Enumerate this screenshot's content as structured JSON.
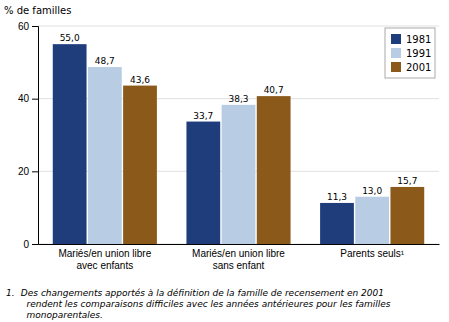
{
  "chart_data": {
    "type": "bar",
    "ylabel": "% de familles",
    "categories": [
      "Mariés/en union libre\navec enfants",
      "Mariés/en union libre\nsans enfant",
      "Parents seuls¹"
    ],
    "series": [
      {
        "name": "1981",
        "color": "#1f3d7a",
        "values": [
          55.0,
          33.7,
          11.3
        ],
        "value_labels": [
          "55,0",
          "33,7",
          "11,3"
        ]
      },
      {
        "name": "1991",
        "color": "#b8cce4",
        "values": [
          48.7,
          38.3,
          13.0
        ],
        "value_labels": [
          "48,7",
          "38,3",
          "13,0"
        ]
      },
      {
        "name": "2001",
        "color": "#8b5a1a",
        "values": [
          43.6,
          40.7,
          15.7
        ],
        "value_labels": [
          "43,6",
          "40,7",
          "15,7"
        ]
      }
    ],
    "ylim": [
      0,
      60
    ],
    "yticks": [
      0,
      20,
      40,
      60
    ],
    "grid": true,
    "legend": "upper right",
    "data_labels": true,
    "annotations": [
      "1.",
      " Des changements apportés à la définition de la famille de recensement en 2001\n   rendent les comparaisons difficiles avec les années antérieures pour les familles\n   monoparentales."
    ]
  }
}
